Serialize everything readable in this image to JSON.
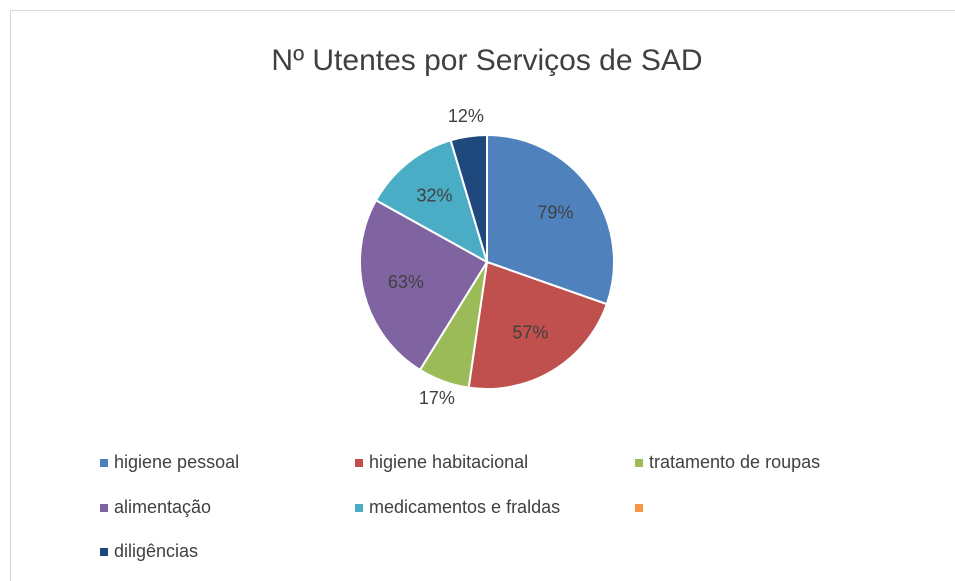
{
  "chart_data": {
    "type": "pie",
    "title": "Nº Utentes por Serviços de SAD",
    "categories": [
      "higiene pessoal",
      "higiene habitacional",
      "tratamento de roupas",
      "alimentação",
      "medicamentos e fraldas",
      null,
      "diligências"
    ],
    "values": [
      79,
      57,
      17,
      63,
      32,
      0,
      12
    ],
    "value_labels": [
      "79%",
      "57%",
      "17%",
      "63%",
      "32%",
      null,
      "12%"
    ],
    "colors": [
      "#4f81bd",
      "#c0504d",
      "#9bbb59",
      "#8064a2",
      "#4bacc6",
      "#f79646",
      "#1f497d"
    ],
    "legend": "bottom"
  }
}
